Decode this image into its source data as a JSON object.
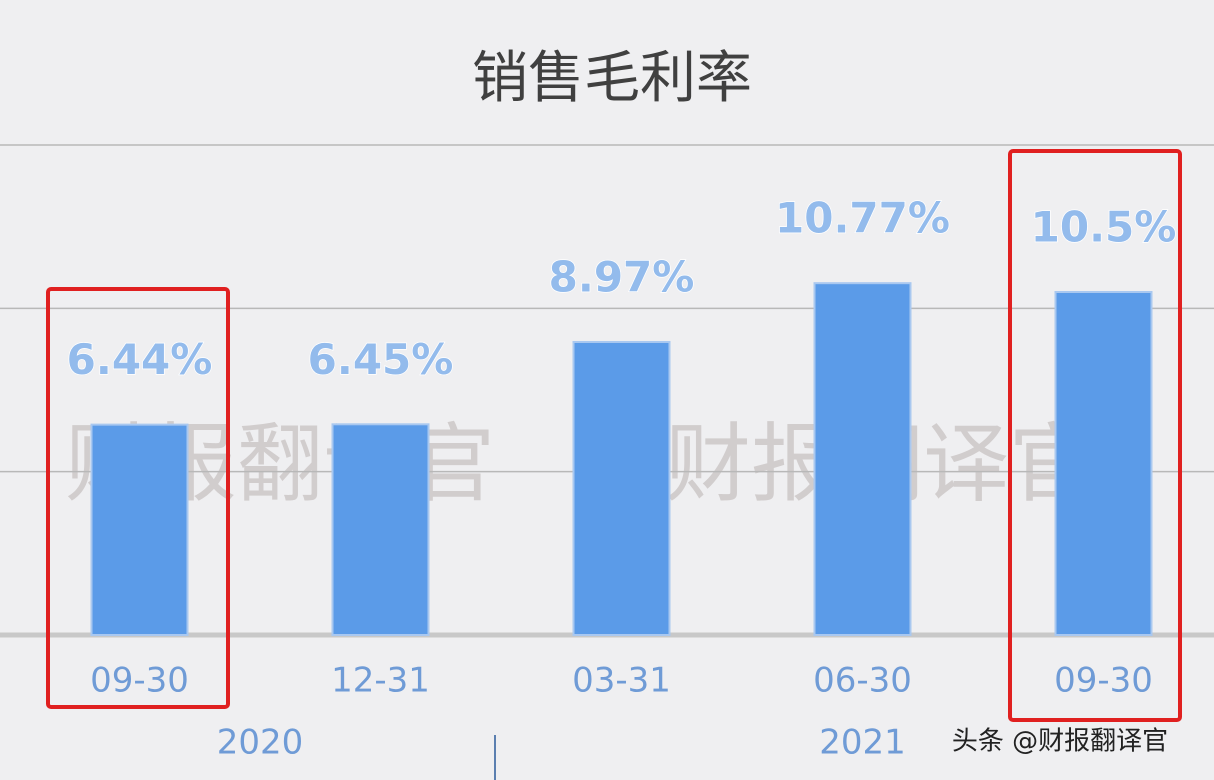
{
  "chart_data": {
    "type": "bar",
    "title": "销售毛利率",
    "categories": [
      "09-30",
      "12-31",
      "03-31",
      "06-30",
      "09-30"
    ],
    "values": [
      6.44,
      6.45,
      8.97,
      10.77,
      10.5
    ],
    "value_labels": [
      "6.44%",
      "6.45%",
      "8.97%",
      "10.77%",
      "10.5%"
    ],
    "group_labels": [
      "2020",
      "2021"
    ],
    "color": "#5b9be8",
    "ylim": [
      0,
      15
    ],
    "yticks": [
      0,
      5,
      10,
      15
    ],
    "grid": true,
    "watermark": "财报翻译官",
    "source": "头条 @财报翻译官"
  }
}
